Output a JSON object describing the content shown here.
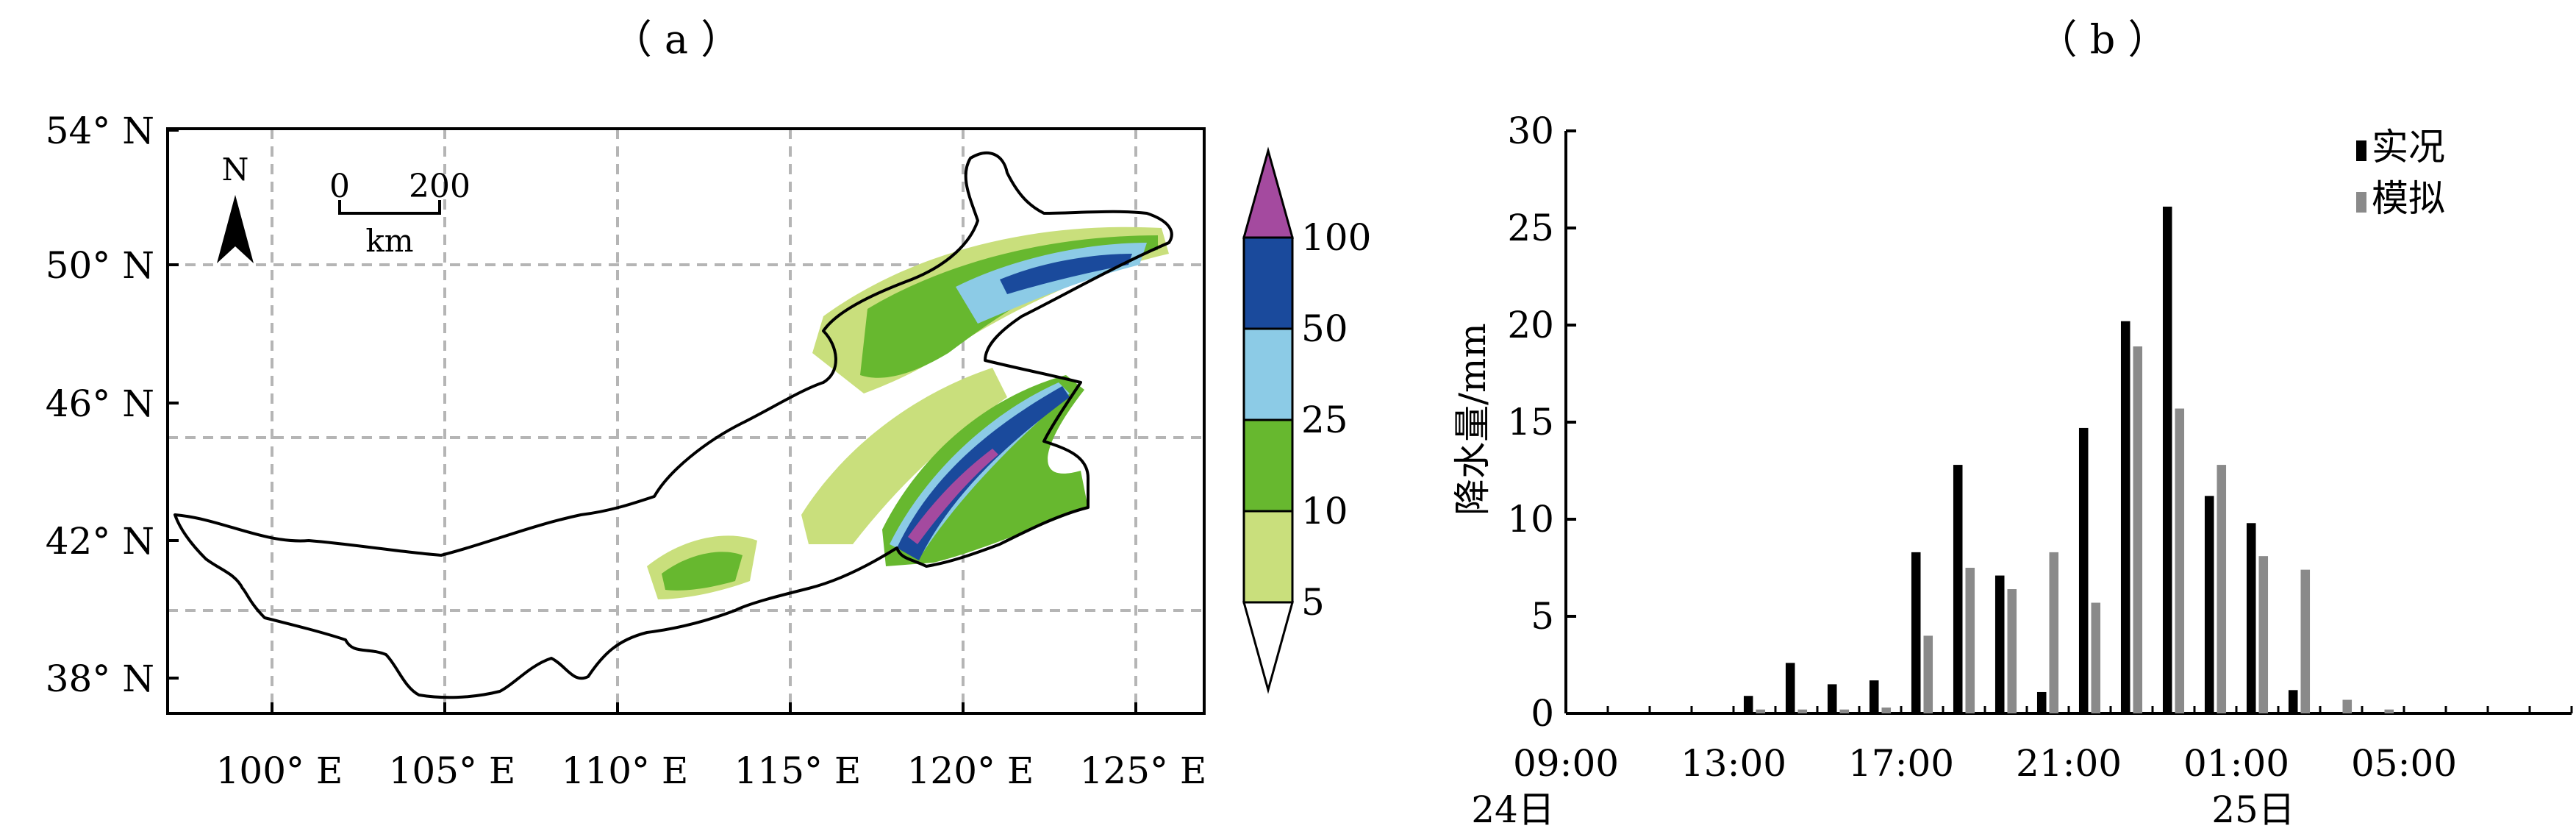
{
  "panel_a": {
    "label": "（ a ）",
    "north": "N",
    "scale": {
      "start": "0",
      "end": "200",
      "unit": "km"
    },
    "colorbar": {
      "levels": [
        "5",
        "10",
        "25",
        "50",
        "100"
      ],
      "colors": [
        "#ffffff",
        "#c9df7c",
        "#67b82f",
        "#8ccbe6",
        "#1a4a9c",
        "#a44a9f"
      ]
    }
  },
  "panel_b": {
    "label": "（ b ）",
    "ylabel": "降水量/mm",
    "date_labels": [
      "24日",
      "25日"
    ]
  },
  "chart_data": [
    {
      "type": "heatmap",
      "title": "（ a ）",
      "xlabel": "",
      "ylabel": "",
      "xlim": [
        97,
        127
      ],
      "ylim": [
        37,
        54
      ],
      "xticks": [
        "100° E",
        "105° E",
        "110° E",
        "115° E",
        "120° E",
        "125° E"
      ],
      "yticks": [
        "38° N",
        "42° N",
        "46° N",
        "50° N",
        "54° N"
      ],
      "grid": true,
      "grid_lat": [
        40,
        45,
        50
      ],
      "legend_levels": [
        5,
        10,
        25,
        50,
        100
      ],
      "regions": [
        {
          "level": 5,
          "name": "5-10",
          "center": [
            119.5,
            46
          ],
          "extent": "broad band SW-NE"
        },
        {
          "level": 10,
          "name": "10-25",
          "center": [
            120,
            46.5
          ],
          "extent": "band SW-NE"
        },
        {
          "level": 25,
          "name": "25-50",
          "center": [
            121.5,
            47.5
          ],
          "extent": "band SW-NE"
        },
        {
          "level": 50,
          "name": "50-100",
          "center": [
            121,
            46
          ],
          "extent": "narrow core"
        },
        {
          "level": 100,
          "name": ">100",
          "center": [
            119,
            43
          ],
          "extent": "thin core"
        }
      ]
    },
    {
      "type": "bar",
      "title": "（ b ）",
      "xlabel": "",
      "ylabel": "降水量/mm",
      "ylim": [
        0,
        30
      ],
      "yticks": [
        "0",
        "5",
        "10",
        "15",
        "20",
        "25",
        "30"
      ],
      "xticks": [
        "09:00",
        "13:00",
        "17:00",
        "21:00",
        "01:00",
        "05:00"
      ],
      "categories": [
        "09:00",
        "10:00",
        "11:00",
        "12:00",
        "13:00",
        "14:00",
        "15:00",
        "16:00",
        "17:00",
        "18:00",
        "19:00",
        "20:00",
        "21:00",
        "22:00",
        "23:00",
        "00:00",
        "01:00",
        "02:00",
        "03:00",
        "04:00",
        "05:00",
        "06:00",
        "07:00",
        "08:00"
      ],
      "legend": "top-right",
      "series": [
        {
          "name": "实况",
          "color": "#000000",
          "values": [
            0,
            0,
            0,
            0,
            0.9,
            2.6,
            1.5,
            1.7,
            8.3,
            12.8,
            7.1,
            1.1,
            14.7,
            20.2,
            26.1,
            11.2,
            9.8,
            1.2,
            0,
            0,
            0,
            0,
            0,
            0
          ]
        },
        {
          "name": "模拟",
          "color": "#8a8a8a",
          "values": [
            0,
            0,
            0,
            0,
            0.2,
            0.2,
            0.2,
            0.3,
            4.0,
            7.5,
            6.4,
            8.3,
            5.7,
            18.9,
            15.7,
            12.8,
            8.1,
            7.4,
            0.7,
            0.2,
            0,
            0,
            0,
            0
          ]
        }
      ]
    }
  ]
}
